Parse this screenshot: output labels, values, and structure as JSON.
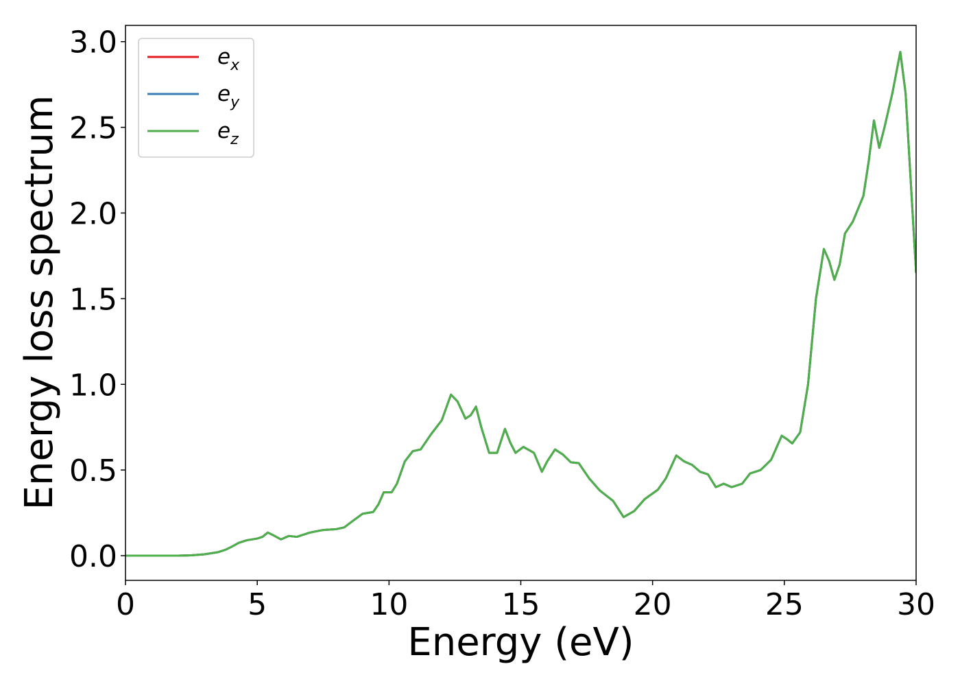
{
  "chart_data": {
    "type": "line",
    "x_label": "Energy (eV)",
    "y_label": "Energy loss spectrum",
    "x": [
      0,
      1,
      2,
      2.5,
      3,
      3.5,
      3.8,
      4,
      4.3,
      4.6,
      5,
      5.2,
      5.4,
      5.6,
      5.9,
      6.2,
      6.5,
      7,
      7.5,
      8,
      8.3,
      8.6,
      9,
      9.4,
      9.6,
      9.8,
      10.1,
      10.3,
      10.6,
      10.9,
      11.2,
      11.6,
      12,
      12.35,
      12.6,
      12.9,
      13.1,
      13.3,
      13.5,
      13.8,
      14.1,
      14.4,
      14.6,
      14.8,
      15.1,
      15.5,
      15.8,
      16,
      16.3,
      16.6,
      16.9,
      17.2,
      17.6,
      18,
      18.5,
      18.9,
      19.3,
      19.7,
      20.2,
      20.5,
      20.9,
      21.2,
      21.5,
      21.8,
      22.1,
      22.4,
      22.7,
      23,
      23.4,
      23.7,
      24.1,
      24.5,
      24.9,
      25.1,
      25.3,
      25.6,
      25.9,
      26.2,
      26.5,
      26.7,
      26.9,
      27.1,
      27.3,
      27.6,
      28,
      28.2,
      28.4,
      28.6,
      28.8,
      29.1,
      29.4,
      29.6,
      30
    ],
    "series": [
      {
        "name": "e_x",
        "color": "#e41a1c",
        "values": [
          0,
          0,
          0,
          0.002,
          0.008,
          0.02,
          0.035,
          0.05,
          0.075,
          0.09,
          0.1,
          0.11,
          0.135,
          0.12,
          0.095,
          0.115,
          0.11,
          0.135,
          0.15,
          0.155,
          0.165,
          0.2,
          0.245,
          0.255,
          0.3,
          0.37,
          0.37,
          0.42,
          0.55,
          0.61,
          0.62,
          0.71,
          0.79,
          0.94,
          0.9,
          0.8,
          0.82,
          0.87,
          0.75,
          0.6,
          0.6,
          0.74,
          0.66,
          0.6,
          0.635,
          0.6,
          0.49,
          0.55,
          0.62,
          0.59,
          0.545,
          0.54,
          0.45,
          0.38,
          0.32,
          0.225,
          0.26,
          0.33,
          0.385,
          0.45,
          0.585,
          0.55,
          0.53,
          0.49,
          0.475,
          0.4,
          0.42,
          0.4,
          0.42,
          0.48,
          0.5,
          0.56,
          0.7,
          0.68,
          0.655,
          0.72,
          1.0,
          1.5,
          1.79,
          1.72,
          1.61,
          1.7,
          1.88,
          1.95,
          2.1,
          2.3,
          2.54,
          2.38,
          2.5,
          2.7,
          2.94,
          2.7,
          1.65
        ]
      },
      {
        "name": "e_y",
        "color": "#377eb8",
        "values": [
          0,
          0,
          0,
          0.002,
          0.008,
          0.02,
          0.035,
          0.05,
          0.075,
          0.09,
          0.1,
          0.11,
          0.135,
          0.12,
          0.095,
          0.115,
          0.11,
          0.135,
          0.15,
          0.155,
          0.165,
          0.2,
          0.245,
          0.255,
          0.3,
          0.37,
          0.37,
          0.42,
          0.55,
          0.61,
          0.62,
          0.71,
          0.79,
          0.94,
          0.9,
          0.8,
          0.82,
          0.87,
          0.75,
          0.6,
          0.6,
          0.74,
          0.66,
          0.6,
          0.635,
          0.6,
          0.49,
          0.55,
          0.62,
          0.59,
          0.545,
          0.54,
          0.45,
          0.38,
          0.32,
          0.225,
          0.26,
          0.33,
          0.385,
          0.45,
          0.585,
          0.55,
          0.53,
          0.49,
          0.475,
          0.4,
          0.42,
          0.4,
          0.42,
          0.48,
          0.5,
          0.56,
          0.7,
          0.68,
          0.655,
          0.72,
          1.0,
          1.5,
          1.79,
          1.72,
          1.61,
          1.7,
          1.88,
          1.95,
          2.1,
          2.3,
          2.54,
          2.38,
          2.5,
          2.7,
          2.94,
          2.7,
          1.65
        ]
      },
      {
        "name": "e_z",
        "color": "#4daf4a",
        "values": [
          0,
          0,
          0,
          0.002,
          0.008,
          0.02,
          0.035,
          0.05,
          0.075,
          0.09,
          0.1,
          0.11,
          0.135,
          0.12,
          0.095,
          0.115,
          0.11,
          0.135,
          0.15,
          0.155,
          0.165,
          0.2,
          0.245,
          0.255,
          0.3,
          0.37,
          0.37,
          0.42,
          0.55,
          0.61,
          0.62,
          0.71,
          0.79,
          0.94,
          0.9,
          0.8,
          0.82,
          0.87,
          0.75,
          0.6,
          0.6,
          0.74,
          0.66,
          0.6,
          0.635,
          0.6,
          0.49,
          0.55,
          0.62,
          0.59,
          0.545,
          0.54,
          0.45,
          0.38,
          0.32,
          0.225,
          0.26,
          0.33,
          0.385,
          0.45,
          0.585,
          0.55,
          0.53,
          0.49,
          0.475,
          0.4,
          0.42,
          0.4,
          0.42,
          0.48,
          0.5,
          0.56,
          0.7,
          0.68,
          0.655,
          0.72,
          1.0,
          1.5,
          1.79,
          1.72,
          1.61,
          1.7,
          1.88,
          1.95,
          2.1,
          2.3,
          2.54,
          2.38,
          2.5,
          2.7,
          2.94,
          2.7,
          1.65
        ]
      }
    ],
    "xlim": [
      0,
      30
    ],
    "xticks": [
      0,
      5,
      10,
      15,
      20,
      25,
      30
    ],
    "ylim": [
      -0.144,
      3.095
    ],
    "yticks": [
      {
        "value": 0,
        "label": "0.0"
      },
      {
        "value": 0.5,
        "label": "0.5"
      },
      {
        "value": 1,
        "label": "1.0"
      },
      {
        "value": 1.5,
        "label": "1.5"
      },
      {
        "value": 2,
        "label": "2.0"
      },
      {
        "value": 2.5,
        "label": "2.5"
      },
      {
        "value": 3,
        "label": "3.0"
      }
    ],
    "grid": false,
    "legend": "upper left"
  }
}
